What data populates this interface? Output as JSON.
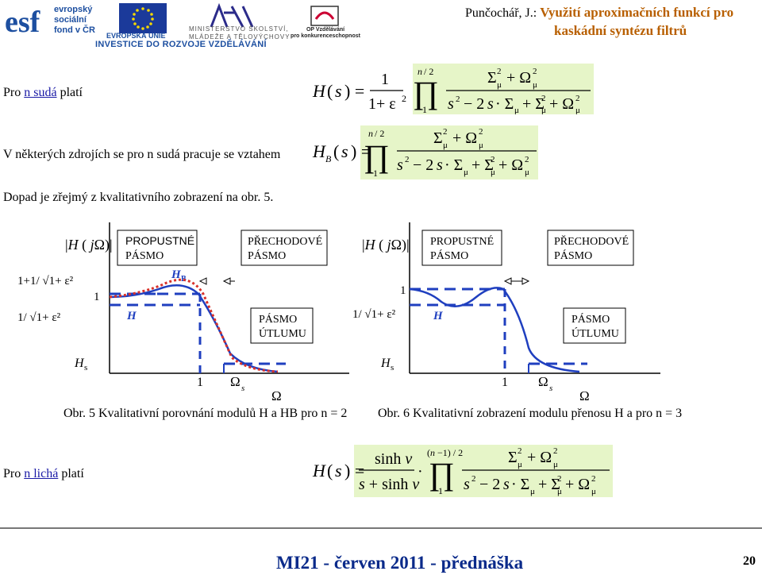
{
  "header": {
    "author": "Punčochář, J.:",
    "title_line1": "Využití aproximačních funkcí pro",
    "title_line2": "kaskádní syntézu filtrů",
    "esf_line1": "evropský",
    "esf_line2": "sociální",
    "esf_line3": "fond v ČR",
    "eu_label": "EVROPSKÁ UNIE",
    "ministry_line1": "MINISTERSTVO ŠKOLSTVÍ,",
    "ministry_line2": "MLÁDEŽE A TĚLOVÝCHOVY",
    "op_line1": "OP Vzdělávání",
    "op_line2": "pro konkurenceschopnost",
    "banner": "INVESTICE DO ROZVOJE VZDĚLÁVÁNÍ"
  },
  "rows": {
    "row1_prefix": "Pro ",
    "row1_link": "n sudá",
    "row1_suffix": " platí",
    "row2": "V některých zdrojích se pro n sudá pracuje se vztahem",
    "row3": "Dopad je zřejmý z kvalitativního zobrazení na obr. 5.",
    "row4_prefix": "Pro ",
    "row4_link": "n lichá",
    "row4_suffix": " platí"
  },
  "graphs": {
    "left": {
      "ylabel": "H ( jΩ)",
      "tick_top": "1+1/ 1+ε²",
      "tick_one": "1",
      "tick_eps": "1/ 1+ε²",
      "tick_hs": "Hs",
      "label_hb": "HB",
      "label_h": "H",
      "pass": [
        "PROPUSTNÉ",
        "PÁSMO"
      ],
      "trans": [
        "PŘECHODOVÉ",
        "PÁSMO"
      ],
      "stop": [
        "PÁSMO",
        "ÚTLUMU"
      ],
      "x_one": "1",
      "x_omega_s": "Ωs",
      "x_omega": "Ω"
    },
    "right": {
      "ylabel": "H ( jΩ)",
      "tick_one": "1",
      "tick_eps": "1/ 1+ε²",
      "tick_hs": "Hs",
      "label_h": "H",
      "pass": [
        "PROPUSTNÉ",
        "PÁSMO"
      ],
      "trans": [
        "PŘECHODOVÉ",
        "PÁSMO"
      ],
      "stop": [
        "PÁSMO",
        "ÚTLUMU"
      ],
      "x_one": "1",
      "x_omega_s": "Ωs",
      "x_omega": "Ω"
    },
    "caption5": "Obr. 5 Kvalitativní porovnání modulů H a HB pro n = 2",
    "caption6": "Obr. 6 Kvalitativní zobrazení modulu přenosu H a pro n = 3"
  },
  "footer": {
    "text": "MI21 - červen 2011 - přednáška",
    "page": "20"
  },
  "colors": {
    "accent_orange": "#b85f00",
    "footer_blue": "#0a2a8a",
    "formula_bg": "#e6f5c8",
    "curve_blue": "#1f3fbf",
    "curve_red": "#d8312a"
  }
}
